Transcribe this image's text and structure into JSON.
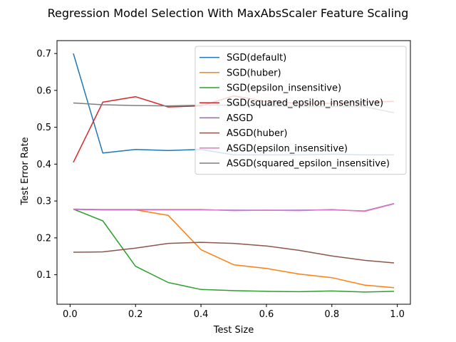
{
  "chart_data": {
    "type": "line",
    "title": "Regression Model Selection With MaxAbsScaler Feature Scaling",
    "xlabel": "Test Size",
    "ylabel": "Test Error Rate",
    "xlim": [
      -0.04,
      1.04
    ],
    "ylim": [
      0.02,
      0.735
    ],
    "xticks": [
      0.0,
      0.2,
      0.4,
      0.6,
      0.8,
      1.0
    ],
    "xtick_labels": [
      "0.0",
      "0.2",
      "0.4",
      "0.6",
      "0.8",
      "1.0"
    ],
    "yticks": [
      0.1,
      0.2,
      0.3,
      0.4,
      0.5,
      0.6,
      0.7
    ],
    "ytick_labels": [
      "0.1",
      "0.2",
      "0.3",
      "0.4",
      "0.5",
      "0.6",
      "0.7"
    ],
    "grid": false,
    "legend_position": "top-right",
    "x": [
      0.01,
      0.1,
      0.2,
      0.3,
      0.4,
      0.5,
      0.6,
      0.7,
      0.8,
      0.9,
      0.99
    ],
    "series": [
      {
        "name": "SGD(default)",
        "color": "#1f77b4",
        "values": [
          0.7,
          0.43,
          0.44,
          0.437,
          0.44,
          0.425,
          0.425,
          0.425,
          0.427,
          0.425,
          0.425
        ]
      },
      {
        "name": "SGD(huber)",
        "color": "#ff7f0e",
        "values": [
          0.278,
          0.276,
          0.276,
          0.261,
          0.168,
          0.127,
          0.117,
          0.102,
          0.092,
          0.072,
          0.065
        ]
      },
      {
        "name": "SGD(epsilon_insensitive)",
        "color": "#2ca02c",
        "values": [
          0.278,
          0.246,
          0.123,
          0.079,
          0.06,
          0.057,
          0.055,
          0.054,
          0.056,
          0.053,
          0.055
        ]
      },
      {
        "name": "SGD(squared_epsilon_insensitive)",
        "color": "#d62728",
        "values": [
          0.405,
          0.568,
          0.583,
          0.555,
          0.558,
          0.585,
          0.57,
          0.565,
          0.565,
          0.568,
          0.57
        ]
      },
      {
        "name": "ASGD",
        "color": "#9467bd",
        "values": [
          0.277,
          0.276,
          0.276,
          0.276,
          0.276,
          0.275,
          0.275,
          0.275,
          0.276,
          0.273,
          0.293
        ]
      },
      {
        "name": "ASGD(huber)",
        "color": "#8c564b",
        "values": [
          0.161,
          0.162,
          0.172,
          0.185,
          0.188,
          0.185,
          0.178,
          0.166,
          0.151,
          0.139,
          0.132
        ]
      },
      {
        "name": "ASGD(epsilon_insensitive)",
        "color": "#e377c2",
        "values": [
          0.278,
          0.277,
          0.277,
          0.277,
          0.277,
          0.274,
          0.275,
          0.274,
          0.277,
          0.272,
          0.292
        ]
      },
      {
        "name": "ASGD(squared_epsilon_insensitive)",
        "color": "#7f7f7f",
        "values": [
          0.566,
          0.561,
          0.559,
          0.558,
          0.56,
          0.56,
          0.558,
          0.556,
          0.556,
          0.556,
          0.539
        ]
      }
    ]
  }
}
